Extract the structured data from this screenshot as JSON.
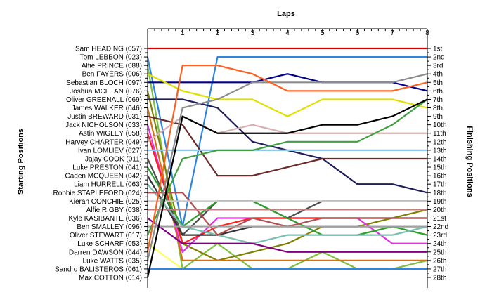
{
  "chart_data": {
    "type": "line",
    "title": "",
    "xlabel": "Laps",
    "ylabel_left": "Starting Positions",
    "ylabel_right": "Finishing Positions",
    "laps": [
      0,
      1,
      2,
      3,
      4,
      5,
      6,
      7,
      8
    ],
    "x_ticks": [
      "1",
      "2",
      "3",
      "4",
      "5",
      "6",
      "7",
      "8"
    ],
    "y_range": [
      1,
      28
    ],
    "grid": false,
    "left_labels": [
      "Sam HEADING (057)",
      "Tom LEBBON (023)",
      "Alfie PRINCE (088)",
      "Ben FAYERS (006)",
      "Sebastian BLOCH (097)",
      "Joshua MCLEAN (076)",
      "Oliver GREENALL (069)",
      "James WALKER (046)",
      "Justin BREWARD (031)",
      "Jack NICHOLSON (033)",
      "Astin WIGLEY (058)",
      "Harvey CHARTER (049)",
      "Ivan LOMLIEV (027)",
      "Jajay COOK (011)",
      "Luke PRESTON (041)",
      "Caden MCQUEEN (042)",
      "Liam HURRELL (063)",
      "Robbie STAPLEFORD (024)",
      "Kieran CONCHIE (025)",
      "Alfie RIGBY (038)",
      "Kyle KASIBANTE (036)",
      "Ben SMALLEY (096)",
      "Oliver STEWART (017)",
      "Luke SCHARF (053)",
      "Darren DAWSON (044)",
      "Luke WATTS (035)",
      "Sandro BALISTEROS (061)",
      "Max COTTON (014)"
    ],
    "right_labels": [
      "1st",
      "2nd",
      "3rd",
      "4th",
      "5th",
      "6th",
      "7th",
      "8th",
      "9th",
      "10th",
      "11th",
      "12th",
      "13th",
      "14th",
      "15th",
      "16th",
      "17th",
      "18th",
      "19th",
      "20th",
      "21st",
      "22nd",
      "23rd",
      "24th",
      "25th",
      "26th",
      "27th",
      "28th"
    ],
    "series": [
      {
        "color": "#d90000",
        "values": [
          1,
          1,
          1,
          1,
          1,
          1,
          1,
          1,
          1
        ]
      },
      {
        "color": "#2e86de",
        "values": [
          2,
          22,
          2,
          2,
          2,
          2,
          2,
          2,
          2
        ]
      },
      {
        "color": "#7cc040",
        "values": [
          3,
          27,
          24,
          27,
          27,
          25,
          27,
          27,
          26
        ]
      },
      {
        "color": "#00008b",
        "values": [
          5,
          5,
          5,
          5,
          4,
          5,
          5,
          5,
          6
        ]
      },
      {
        "color": "#e0e000",
        "values": [
          4,
          6,
          7,
          7,
          9,
          7,
          7,
          7,
          8
        ]
      },
      {
        "color": "#808000",
        "values": [
          6,
          24,
          26,
          25,
          24,
          22,
          22,
          21,
          20
        ]
      },
      {
        "color": "#1e1e5a",
        "values": [
          7,
          7,
          8,
          12,
          13,
          14,
          17,
          17,
          18
        ]
      },
      {
        "color": "#d87010",
        "values": [
          8,
          26,
          26,
          26,
          26,
          26,
          26,
          26,
          26
        ]
      },
      {
        "color": "#6a2a2a",
        "values": [
          9,
          10,
          16,
          16,
          15,
          14,
          14,
          14,
          14
        ]
      },
      {
        "color": "#e030e0",
        "values": [
          10,
          25,
          21,
          21,
          21,
          21,
          21,
          24,
          24
        ]
      },
      {
        "color": "#ff2020",
        "values": [
          11,
          24,
          22,
          21,
          21,
          21,
          21,
          21,
          21
        ]
      },
      {
        "color": "#d8b0b0",
        "values": [
          12,
          9,
          11,
          10,
          11,
          11,
          11,
          11,
          11
        ]
      },
      {
        "color": "#90c8f0",
        "values": [
          13,
          13,
          13,
          13,
          13,
          13,
          13,
          13,
          13
        ]
      },
      {
        "color": "#4c4c4c",
        "values": [
          14,
          23,
          19,
          19,
          21,
          19,
          19,
          19,
          19
        ]
      },
      {
        "color": "#333333",
        "values": [
          16,
          23,
          23,
          22,
          22,
          22,
          22,
          22,
          22
        ]
      },
      {
        "color": "#2ca02c",
        "values": [
          15,
          22,
          19,
          19,
          21,
          23,
          23,
          22,
          23
        ]
      },
      {
        "color": "#78c0b0",
        "values": [
          17,
          22,
          23,
          24,
          23,
          23,
          23,
          23,
          22
        ]
      },
      {
        "color": "#b05050",
        "values": [
          18,
          18,
          23,
          21,
          22,
          21,
          21,
          21,
          21
        ]
      },
      {
        "color": "#c8c8c8",
        "values": [
          19,
          19,
          19,
          19,
          19,
          19,
          19,
          19,
          19
        ]
      },
      {
        "color": "#c08080",
        "values": [
          20,
          20,
          20,
          20,
          20,
          20,
          20,
          20,
          20
        ]
      },
      {
        "color": "#800080",
        "values": [
          21,
          24,
          24,
          24,
          25,
          25,
          25,
          25,
          25
        ]
      },
      {
        "color": "#a0a0a0",
        "values": [
          22,
          22,
          22,
          22,
          22,
          22,
          22,
          22,
          22
        ]
      },
      {
        "color": "#40a040",
        "values": [
          23,
          14,
          13,
          13,
          12,
          12,
          12,
          10,
          7
        ]
      },
      {
        "color": "#ffff60",
        "values": [
          24,
          27,
          27,
          27,
          27,
          27,
          27,
          27,
          27
        ]
      },
      {
        "color": "#2e86de",
        "values": [
          27,
          27,
          27,
          27,
          27,
          27,
          27,
          27,
          27
        ]
      },
      {
        "color": "#000000",
        "values": [
          28,
          9,
          11,
          11,
          11,
          10,
          10,
          9,
          7
        ]
      },
      {
        "color": "#8c8c8c",
        "values": [
          26,
          8,
          7,
          5,
          5,
          5,
          5,
          5,
          4
        ]
      },
      {
        "color": "#ff6020",
        "values": [
          25,
          3,
          3,
          4,
          6,
          6,
          6,
          6,
          5
        ]
      }
    ]
  }
}
